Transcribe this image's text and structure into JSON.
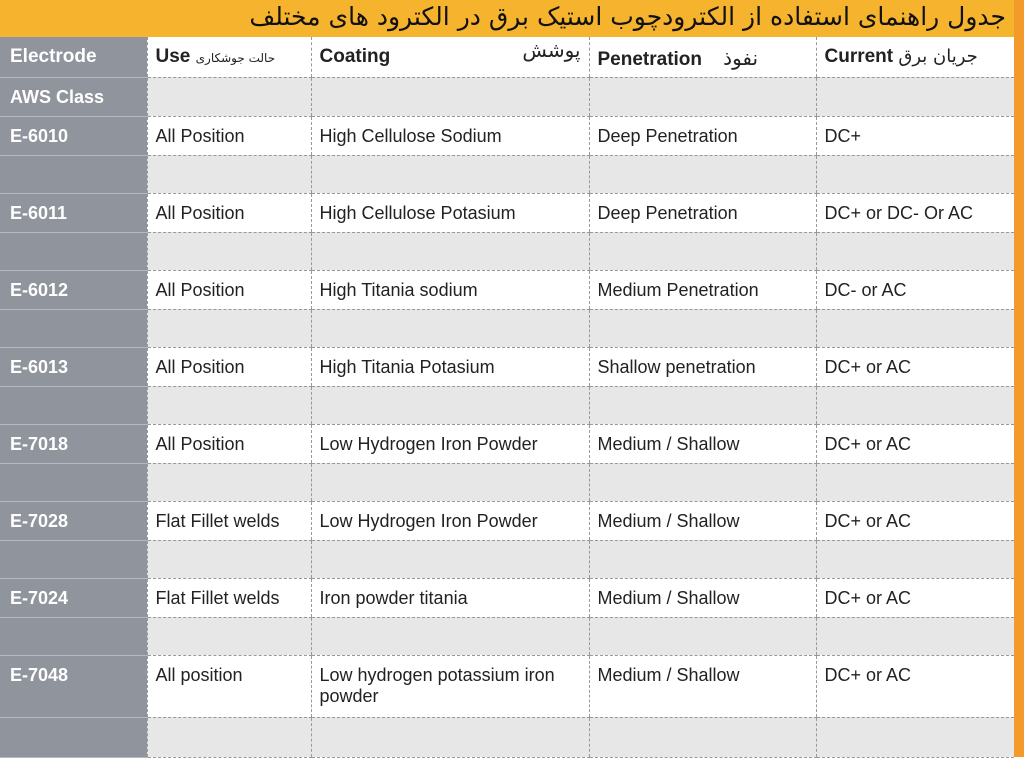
{
  "title": "جدول راهنمای استفاده از الکترودچوب استیک برق  در الکترود های مختلف",
  "header": {
    "electrode": "Electrode",
    "aws_class": "AWS Class",
    "use": "Use",
    "use_fa": "حالت جوشکاری",
    "coating": "Coating",
    "coating_fa": "پوشش",
    "penetration": "Penetration",
    "penetration_fa": "نفوذ",
    "current": "Current",
    "current_fa": "جریان برق"
  },
  "rows": [
    {
      "class": "E-6010",
      "use": "All Position",
      "coating": "High Cellulose Sodium",
      "penetration": "Deep Penetration",
      "current": "DC+"
    },
    {
      "class": "E-6011",
      "use": "All Position",
      "coating": "High Cellulose Potasium",
      "penetration": "Deep Penetration",
      "current": "DC+ or DC- Or AC"
    },
    {
      "class": "E-6012",
      "use": "All Position",
      "coating": "High Titania sodium",
      "penetration": "Medium Penetration",
      "current": "DC- or AC"
    },
    {
      "class": "E-6013",
      "use": "All Position",
      "coating": "High Titania Potasium",
      "penetration": "Shallow penetration",
      "current": "DC+ or AC"
    },
    {
      "class": "E-7018",
      "use": "All Position",
      "coating": "Low Hydrogen Iron Powder",
      "penetration": "Medium / Shallow",
      "current": "DC+ or AC"
    },
    {
      "class": "E-7028",
      "use": "Flat Fillet welds",
      "coating": "Low Hydrogen Iron Powder",
      "penetration": "Medium / Shallow",
      "current": "DC+ or AC"
    },
    {
      "class": "E-7024",
      "use": "Flat Fillet welds",
      "coating": "Iron powder titania",
      "penetration": "Medium / Shallow",
      "current": "DC+ or AC"
    },
    {
      "class": "E-7048",
      "use": "All position",
      "coating": "Low hydrogen potassium iron powder",
      "penetration": "Medium / Shallow",
      "current": "DC+ or AC"
    }
  ],
  "colors": {
    "title_band": "#f6b32e",
    "border": "#f39a2a",
    "class_column": "#8f949d",
    "alt_row": "#e7e7e7"
  }
}
